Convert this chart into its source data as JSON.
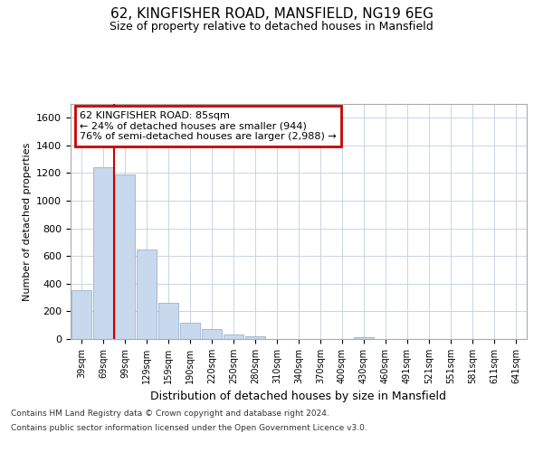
{
  "title": "62, KINGFISHER ROAD, MANSFIELD, NG19 6EG",
  "subtitle": "Size of property relative to detached houses in Mansfield",
  "xlabel": "Distribution of detached houses by size in Mansfield",
  "ylabel": "Number of detached properties",
  "footer_line1": "Contains HM Land Registry data © Crown copyright and database right 2024.",
  "footer_line2": "Contains public sector information licensed under the Open Government Licence v3.0.",
  "categories": [
    "39sqm",
    "69sqm",
    "99sqm",
    "129sqm",
    "159sqm",
    "190sqm",
    "220sqm",
    "250sqm",
    "280sqm",
    "310sqm",
    "340sqm",
    "370sqm",
    "400sqm",
    "430sqm",
    "460sqm",
    "491sqm",
    "521sqm",
    "551sqm",
    "581sqm",
    "611sqm",
    "641sqm"
  ],
  "values": [
    355,
    1240,
    1190,
    645,
    260,
    120,
    70,
    35,
    20,
    0,
    0,
    0,
    0,
    15,
    0,
    0,
    0,
    0,
    0,
    0,
    0
  ],
  "bar_color": "#c8d8ed",
  "bar_edge_color": "#9ab4cc",
  "red_line_x": 1.5,
  "annotation_title": "62 KINGFISHER ROAD: 85sqm",
  "annotation_line2": "← 24% of detached houses are smaller (944)",
  "annotation_line3": "76% of semi-detached houses are larger (2,988) →",
  "annotation_box_color": "#cc0000",
  "ylim": [
    0,
    1700
  ],
  "yticks": [
    0,
    200,
    400,
    600,
    800,
    1000,
    1200,
    1400,
    1600
  ],
  "grid_color": "#c8d4e4",
  "bg_color": "#ffffff",
  "plot_bg_color": "#ffffff"
}
